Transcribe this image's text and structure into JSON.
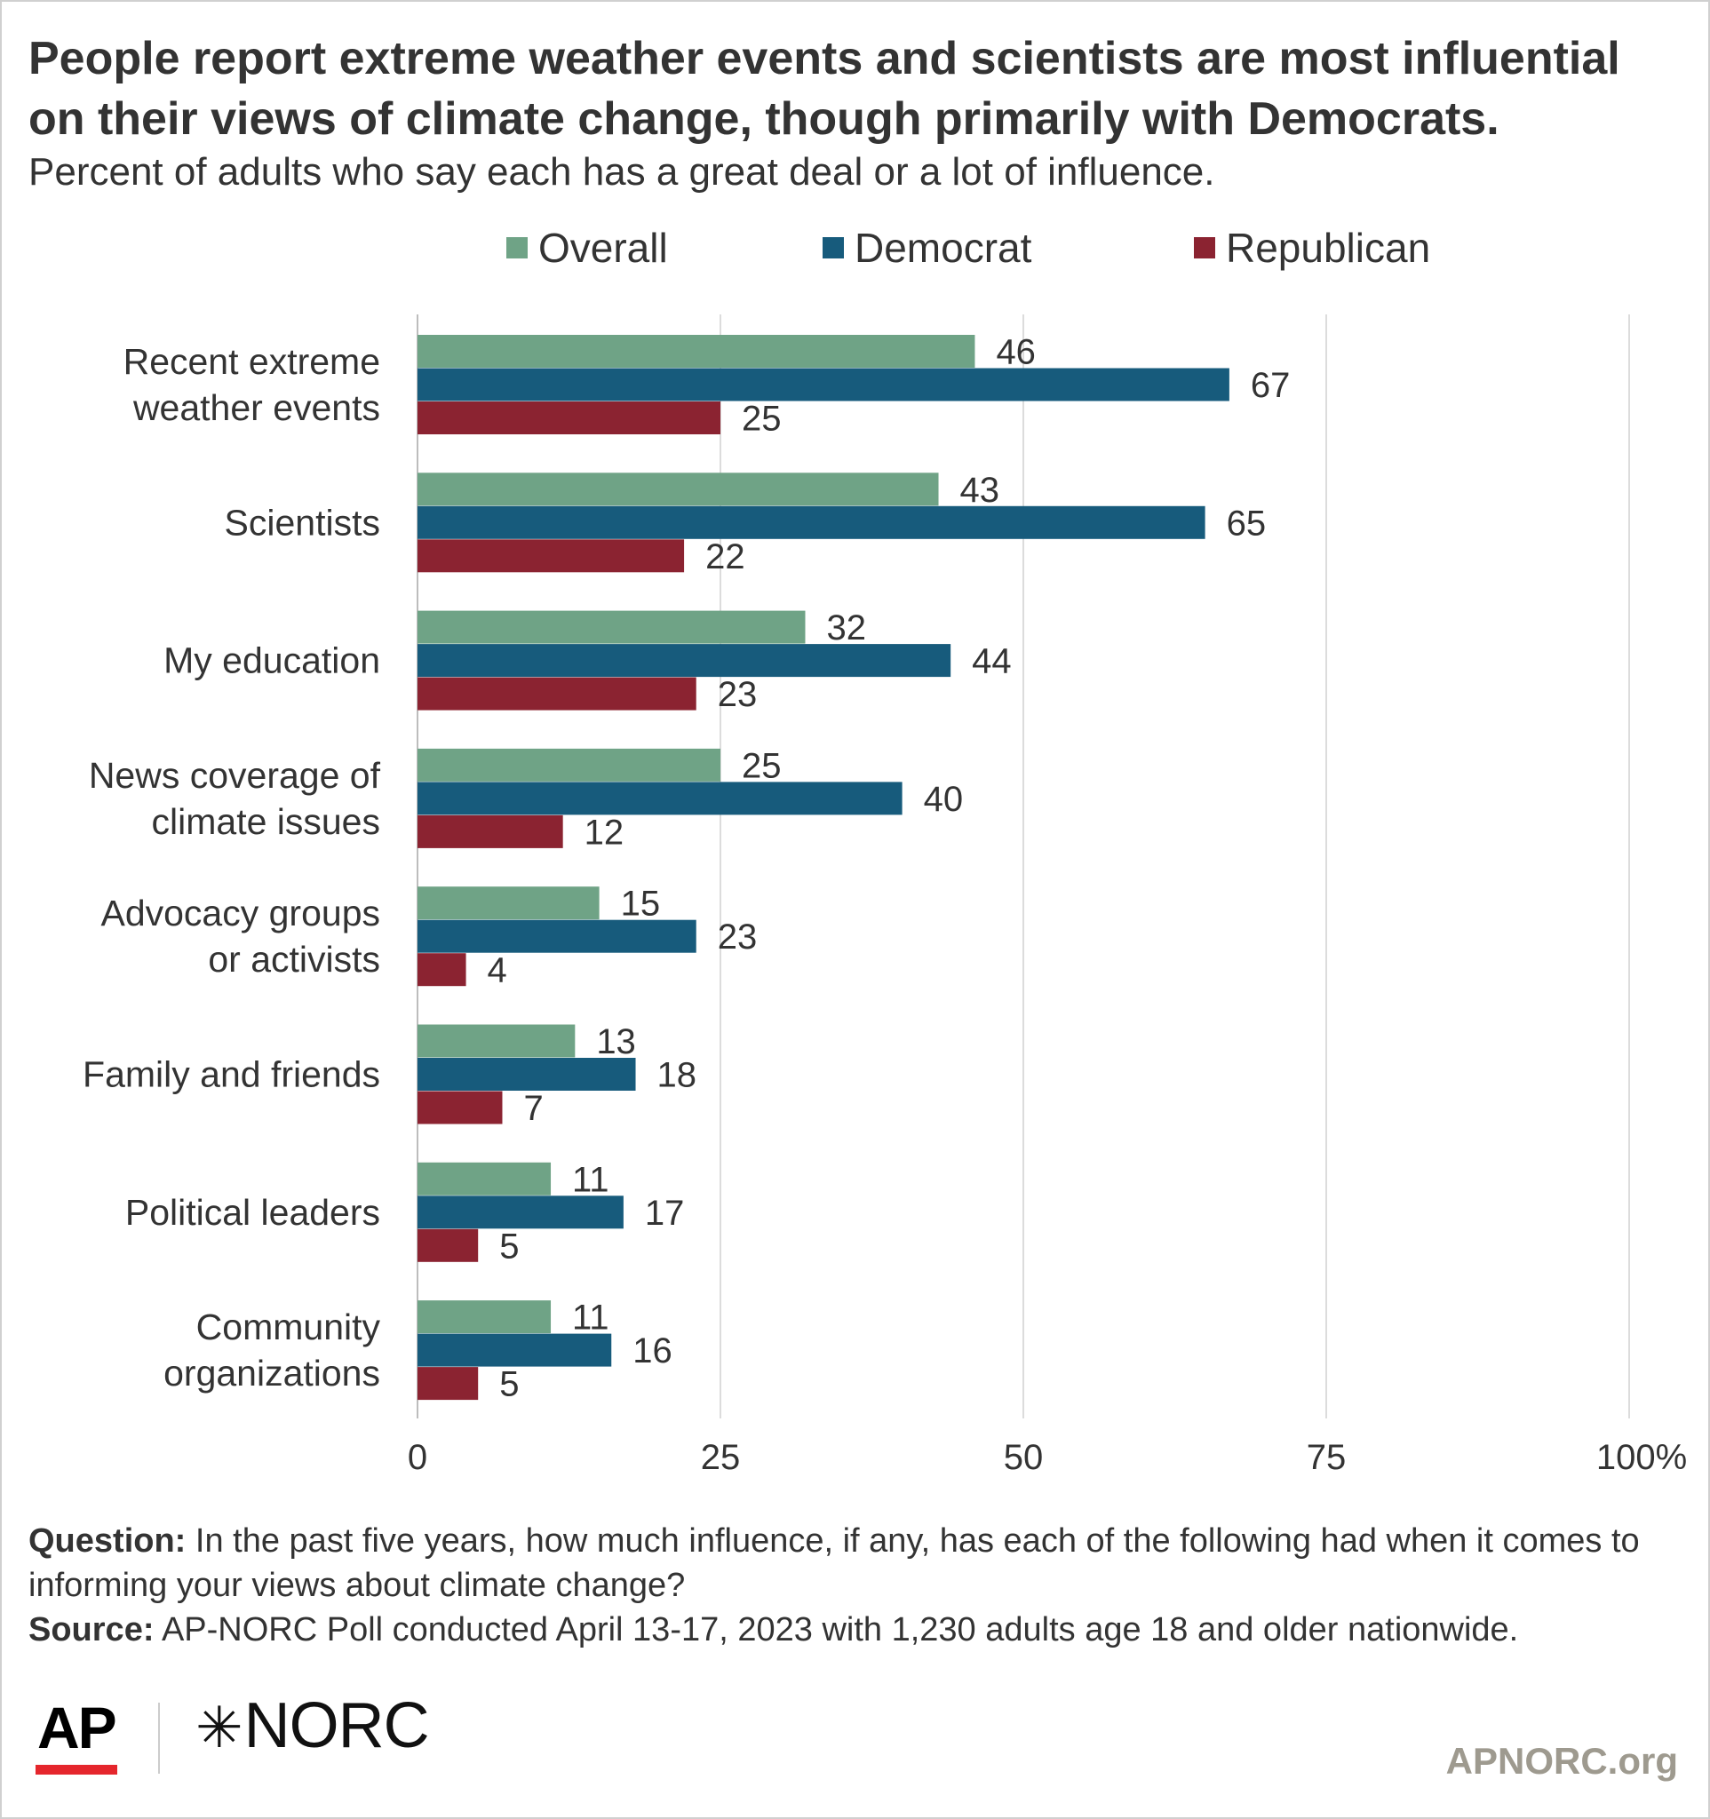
{
  "title": "People report extreme weather events and scientists are most influential on their views of climate change, though primarily with Democrats.",
  "subtitle": "Percent of adults who say each has a great deal or a lot of influence.",
  "legend": [
    {
      "name": "Overall",
      "color": "#6fa386"
    },
    {
      "name": "Democrat",
      "color": "#175b7c"
    },
    {
      "name": "Republican",
      "color": "#8b2331"
    }
  ],
  "chart_data": {
    "type": "bar",
    "orientation": "horizontal",
    "categories": [
      [
        "Recent extreme",
        "weather events"
      ],
      [
        "Scientists"
      ],
      [
        "My education"
      ],
      [
        "News coverage of",
        "climate issues"
      ],
      [
        "Advocacy groups",
        "or activists"
      ],
      [
        "Family and friends"
      ],
      [
        "Political leaders"
      ],
      [
        "Community",
        "organizations"
      ]
    ],
    "series": [
      {
        "name": "Overall",
        "color": "#6fa386",
        "values": [
          46,
          43,
          32,
          25,
          15,
          13,
          11,
          11
        ]
      },
      {
        "name": "Democrat",
        "color": "#175b7c",
        "values": [
          67,
          65,
          44,
          40,
          23,
          18,
          17,
          16
        ]
      },
      {
        "name": "Republican",
        "color": "#8b2331",
        "values": [
          25,
          22,
          23,
          12,
          4,
          7,
          5,
          5
        ]
      }
    ],
    "xlim": [
      0,
      100
    ],
    "ticks": [
      "0",
      "25",
      "50",
      "75",
      "100%"
    ],
    "tick_values": [
      0,
      25,
      50,
      75,
      100
    ],
    "grid": true,
    "legend_position": "top"
  },
  "footnote": {
    "question_label": "Question:",
    "question_text": " In the past five years, how much influence, if any, has each of the following had when it comes to informing your views about climate change?",
    "source_label": "Source:",
    "source_text": " AP-NORC Poll conducted April 13-17, 2023 with 1,230 adults age 18 and older nationwide."
  },
  "logos": {
    "ap": "AP",
    "norc_mark": "✳",
    "norc": "NORC"
  },
  "site": "APNORC.org"
}
